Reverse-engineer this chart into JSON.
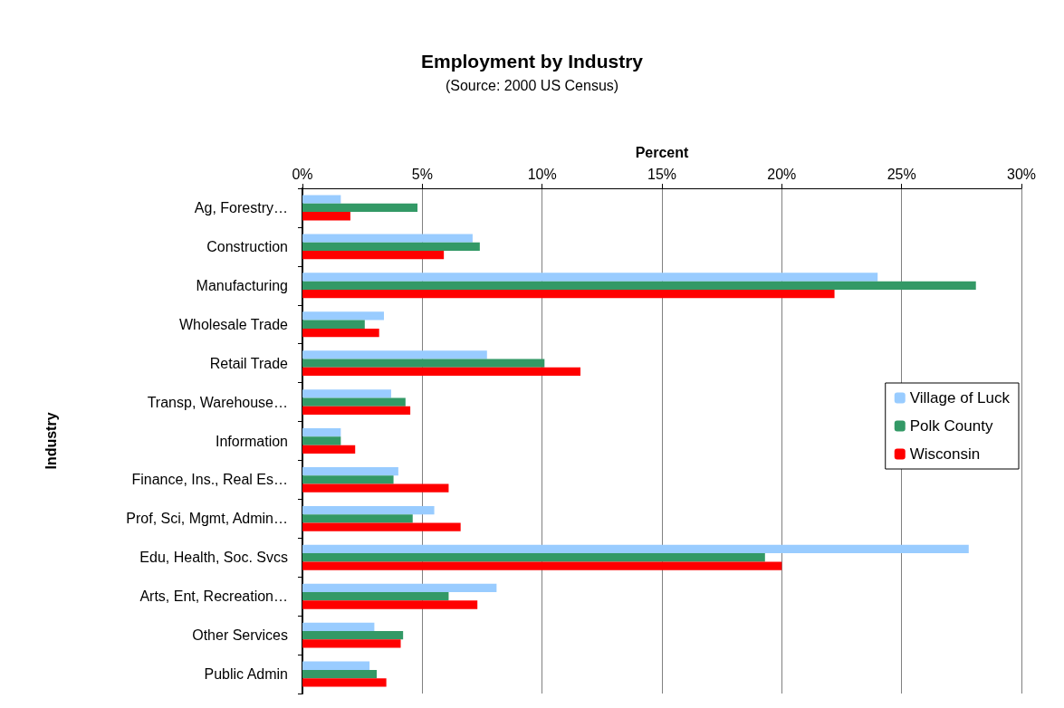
{
  "chart_data": {
    "type": "bar",
    "orientation": "horizontal",
    "title": "Employment by Industry",
    "subtitle": "(Source: 2000 US Census)",
    "xlabel": "Percent",
    "ylabel": "Industry",
    "categories": [
      "Ag, Forestry…",
      "Construction",
      "Manufacturing",
      "Wholesale Trade",
      "Retail Trade",
      "Transp, Warehouse…",
      "Information",
      "Finance, Ins., Real Es…",
      "Prof, Sci, Mgmt, Admin…",
      "Edu, Health, Soc. Svcs",
      "Arts, Ent, Recreation…",
      "Other Services",
      "Public Admin"
    ],
    "series": [
      {
        "name": "Village of Luck",
        "color": "#99ccff",
        "values": [
          1.6,
          7.1,
          24.0,
          3.4,
          7.7,
          3.7,
          1.6,
          4.0,
          5.5,
          27.8,
          8.1,
          3.0,
          2.8
        ]
      },
      {
        "name": "Polk County",
        "color": "#339966",
        "values": [
          4.8,
          7.4,
          28.1,
          2.6,
          10.1,
          4.3,
          1.6,
          3.8,
          4.6,
          19.3,
          6.1,
          4.2,
          3.1
        ]
      },
      {
        "name": "Wisconsin",
        "color": "#ff0000",
        "values": [
          2.0,
          5.9,
          22.2,
          3.2,
          11.6,
          4.5,
          2.2,
          6.1,
          6.6,
          20.0,
          7.3,
          4.1,
          3.5
        ]
      }
    ],
    "xlim": [
      0,
      30
    ],
    "xticks": [
      {
        "value": 0,
        "label": "0%"
      },
      {
        "value": 5,
        "label": "5%"
      },
      {
        "value": 10,
        "label": "10%"
      },
      {
        "value": 15,
        "label": "15%"
      },
      {
        "value": 20,
        "label": "20%"
      },
      {
        "value": 25,
        "label": "25%"
      },
      {
        "value": 30,
        "label": "30%"
      }
    ],
    "grid": "x",
    "legend": "right"
  }
}
